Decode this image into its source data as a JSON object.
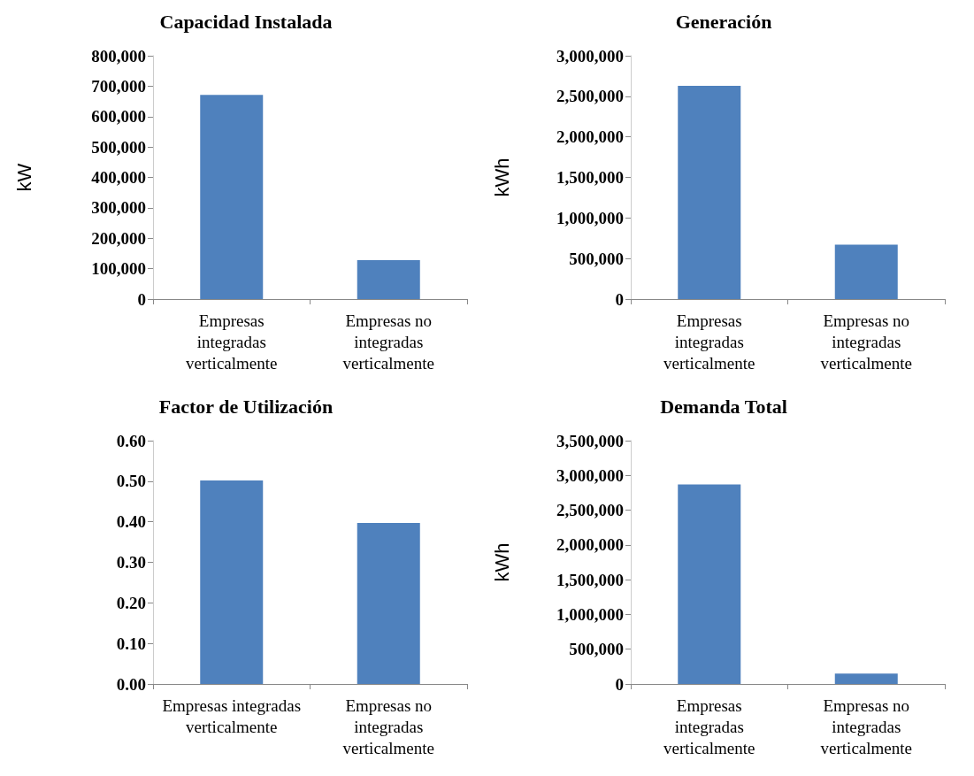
{
  "chart_data": [
    {
      "type": "bar",
      "title": "Capacidad Instalada",
      "ylabel": "kW",
      "categories": [
        "Empresas\nintegradas\nverticalmente",
        "Empresas no\nintegradas\nverticalmente"
      ],
      "values": [
        671000,
        128000
      ],
      "color": "#4f81bd",
      "ylim": [
        0,
        800000
      ],
      "yticks": [
        {
          "value": 0,
          "label": "0"
        },
        {
          "value": 100000,
          "label": "100,000"
        },
        {
          "value": 200000,
          "label": "200,000"
        },
        {
          "value": 300000,
          "label": "300,000"
        },
        {
          "value": 400000,
          "label": "400,000"
        },
        {
          "value": 500000,
          "label": "500,000"
        },
        {
          "value": 600000,
          "label": "600,000"
        },
        {
          "value": 700000,
          "label": "700,000"
        },
        {
          "value": 800000,
          "label": "800,000"
        }
      ],
      "grid": false
    },
    {
      "type": "bar",
      "title": "Generación",
      "ylabel": "kWh",
      "categories": [
        "Empresas\nintegradas\nverticalmente",
        "Empresas no\nintegradas\nverticalmente"
      ],
      "values": [
        2630000,
        670000
      ],
      "color": "#4f81bd",
      "ylim": [
        0,
        3000000
      ],
      "yticks": [
        {
          "value": 0,
          "label": "0"
        },
        {
          "value": 500000,
          "label": "500,000"
        },
        {
          "value": 1000000,
          "label": "1,000,000"
        },
        {
          "value": 1500000,
          "label": "1,500,000"
        },
        {
          "value": 2000000,
          "label": "2,000,000"
        },
        {
          "value": 2500000,
          "label": "2,500,000"
        },
        {
          "value": 3000000,
          "label": "3,000,000"
        }
      ],
      "grid": false
    },
    {
      "type": "bar",
      "title": "Factor de Utilización",
      "categories": [
        "Empresas integradas\nverticalmente",
        "Empresas no\nintegradas\nverticalmente"
      ],
      "values": [
        0.502,
        0.397
      ],
      "color": "#4f81bd",
      "ylim": [
        0,
        0.6
      ],
      "yticks": [
        {
          "value": 0,
          "label": "0.00"
        },
        {
          "value": 0.1,
          "label": "0.10"
        },
        {
          "value": 0.2,
          "label": "0.20"
        },
        {
          "value": 0.3,
          "label": "0.30"
        },
        {
          "value": 0.4,
          "label": "0.40"
        },
        {
          "value": 0.5,
          "label": "0.50"
        },
        {
          "value": 0.6,
          "label": "0.60"
        }
      ],
      "grid": false
    },
    {
      "type": "bar",
      "title": "Demanda Total",
      "ylabel": "kWh",
      "categories": [
        "Empresas\nintegradas\nverticalmente",
        "Empresas no\nintegradas\nverticalmente"
      ],
      "values": [
        2870000,
        150000
      ],
      "color": "#4f81bd",
      "ylim": [
        0,
        3500000
      ],
      "yticks": [
        {
          "value": 0,
          "label": "0"
        },
        {
          "value": 500000,
          "label": "500,000"
        },
        {
          "value": 1000000,
          "label": "1,000,000"
        },
        {
          "value": 1500000,
          "label": "1,500,000"
        },
        {
          "value": 2000000,
          "label": "2,000,000"
        },
        {
          "value": 2500000,
          "label": "2,500,000"
        },
        {
          "value": 3000000,
          "label": "3,000,000"
        },
        {
          "value": 3500000,
          "label": "3,500,000"
        }
      ],
      "grid": false
    }
  ]
}
